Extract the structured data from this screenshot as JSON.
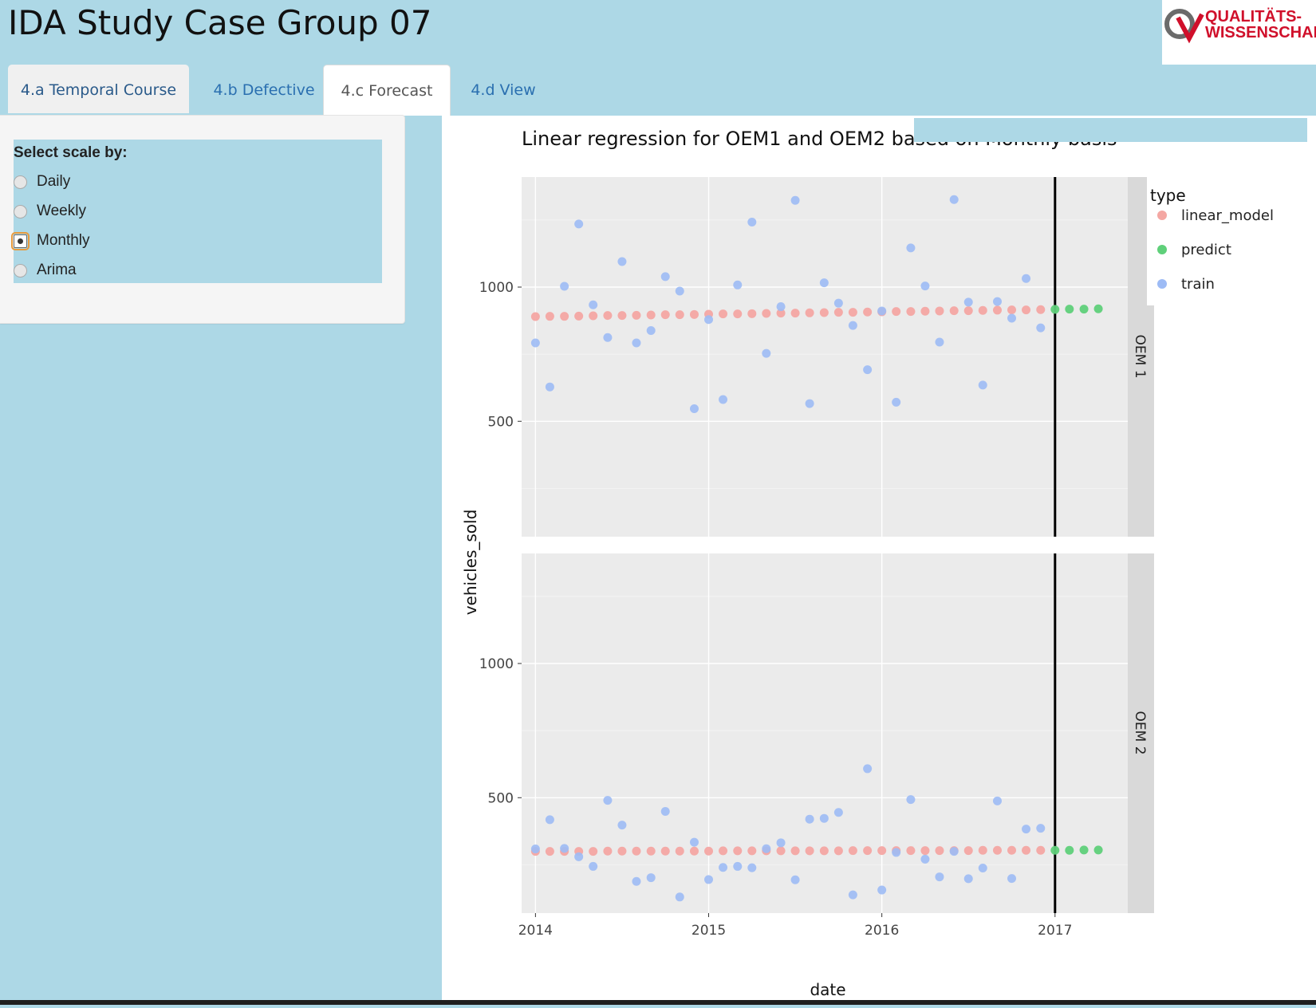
{
  "app": {
    "title": "IDA Study Case Group 07"
  },
  "logo": {
    "line1": "QUALITÄTS-",
    "line2": "WISSENSCHAFT"
  },
  "tabs": [
    {
      "label": "4.a Temporal Course"
    },
    {
      "label": "4.b Defective"
    },
    {
      "label": "4.c Forecast"
    },
    {
      "label": "4.d View"
    }
  ],
  "sidebar": {
    "scale_label": "Select scale by:",
    "options": [
      "Daily",
      "Weekly",
      "Monthly",
      "Arima"
    ],
    "selected": "Monthly"
  },
  "colors": {
    "linear_model": "#f4a7a3",
    "predict": "#5fd07a",
    "train": "#9dbbf5",
    "panel_bg": "#ebebeb",
    "strip_bg": "#d9d9d9"
  },
  "chart_data": {
    "type": "scatter",
    "title": "Linear regression for OEM1 and OEM2 based on Monthly basis",
    "xlabel": "date",
    "ylabel": "vehicles_sold",
    "legend": {
      "title": "type",
      "position": "top-right",
      "entries": [
        "linear_model",
        "predict",
        "train"
      ]
    },
    "xlim": [
      2013.92,
      2017.42
    ],
    "ylim": [
      70,
      1410
    ],
    "x_ticks": [
      "2014",
      "2015",
      "2016",
      "2017"
    ],
    "y_ticks": [
      "500",
      "1000"
    ],
    "vline_x": 2017,
    "grid": true,
    "panels": [
      {
        "name": "OEM 1",
        "series": [
          {
            "name": "train",
            "x": [
              2014.0,
              2014.083,
              2014.167,
              2014.25,
              2014.333,
              2014.417,
              2014.5,
              2014.583,
              2014.667,
              2014.75,
              2014.833,
              2014.917,
              2015.0,
              2015.083,
              2015.167,
              2015.25,
              2015.333,
              2015.417,
              2015.5,
              2015.583,
              2015.667,
              2015.75,
              2015.833,
              2015.917,
              2016.0,
              2016.083,
              2016.167,
              2016.25,
              2016.333,
              2016.417,
              2016.5,
              2016.583,
              2016.667,
              2016.75,
              2016.833,
              2016.917
            ],
            "y": [
              792,
              628,
              1003,
              1235,
              934,
              812,
              1095,
              792,
              838,
              1039,
              985,
              547,
              879,
              581,
              1008,
              1242,
              753,
              927,
              1323,
              566,
              1016,
              940,
              857,
              692,
              911,
              571,
              1146,
              1004,
              795,
              1326,
              944,
              635,
              946,
              884,
              1032,
              848
            ]
          },
          {
            "name": "linear_model",
            "x": [
              2014.0,
              2014.083,
              2014.167,
              2014.25,
              2014.333,
              2014.417,
              2014.5,
              2014.583,
              2014.667,
              2014.75,
              2014.833,
              2014.917,
              2015.0,
              2015.083,
              2015.167,
              2015.25,
              2015.333,
              2015.417,
              2015.5,
              2015.583,
              2015.667,
              2015.75,
              2015.833,
              2015.917,
              2016.0,
              2016.083,
              2016.167,
              2016.25,
              2016.333,
              2016.417,
              2016.5,
              2016.583,
              2016.667,
              2016.75,
              2016.833,
              2016.917
            ],
            "y": [
              890,
              891,
              891,
              892,
              893,
              894,
              894,
              895,
              896,
              897,
              897,
              898,
              899,
              900,
              900,
              901,
              902,
              903,
              903,
              904,
              905,
              906,
              906,
              907,
              908,
              909,
              909,
              910,
              911,
              912,
              912,
              913,
              914,
              915,
              915,
              916
            ]
          },
          {
            "name": "predict",
            "x": [
              2017.0,
              2017.083,
              2017.167,
              2017.25
            ],
            "y": [
              917,
              918,
              918,
              919
            ]
          }
        ]
      },
      {
        "name": "OEM 2",
        "series": [
          {
            "name": "train",
            "x": [
              2014.0,
              2014.083,
              2014.167,
              2014.25,
              2014.333,
              2014.417,
              2014.5,
              2014.583,
              2014.667,
              2014.75,
              2014.833,
              2014.917,
              2015.0,
              2015.083,
              2015.167,
              2015.25,
              2015.333,
              2015.417,
              2015.5,
              2015.583,
              2015.667,
              2015.75,
              2015.833,
              2015.917,
              2016.0,
              2016.083,
              2016.167,
              2016.25,
              2016.333,
              2016.417,
              2016.5,
              2016.583,
              2016.667,
              2016.75,
              2016.833,
              2016.917
            ],
            "y": [
              309,
              418,
              311,
              280,
              244,
              490,
              398,
              188,
              202,
              449,
              130,
              334,
              195,
              240,
              244,
              239,
              310,
              332,
              194,
              420,
              423,
              445,
              138,
              608,
              156,
              296,
              493,
              271,
              205,
              300,
              198,
              238,
              488,
              199,
              383,
              386
            ]
          },
          {
            "name": "linear_model",
            "x": [
              2014.0,
              2014.083,
              2014.167,
              2014.25,
              2014.333,
              2014.417,
              2014.5,
              2014.583,
              2014.667,
              2014.75,
              2014.833,
              2014.917,
              2015.0,
              2015.083,
              2015.167,
              2015.25,
              2015.333,
              2015.417,
              2015.5,
              2015.583,
              2015.667,
              2015.75,
              2015.833,
              2015.917,
              2016.0,
              2016.083,
              2016.167,
              2016.25,
              2016.333,
              2016.417,
              2016.5,
              2016.583,
              2016.667,
              2016.75,
              2016.833,
              2016.917
            ],
            "y": [
              300,
              300,
              300,
              300,
              300,
              301,
              301,
              301,
              301,
              301,
              301,
              301,
              301,
              302,
              302,
              302,
              302,
              302,
              302,
              302,
              302,
              302,
              303,
              303,
              303,
              303,
              303,
              303,
              303,
              303,
              303,
              304,
              304,
              304,
              304,
              304
            ]
          },
          {
            "name": "predict",
            "x": [
              2017.0,
              2017.083,
              2017.167,
              2017.25
            ],
            "y": [
              304,
              304,
              305,
              305
            ]
          }
        ]
      }
    ]
  }
}
